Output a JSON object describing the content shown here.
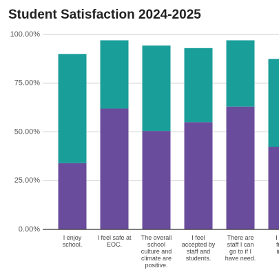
{
  "chart_data": {
    "type": "stacked_bar",
    "title": "Student Satisfaction 2024-2025",
    "categories": [
      "I enjoy\nschool.",
      "I feel safe at\nEOC.",
      "The overall\nschool\nculture and\nclimate are\npositive.",
      "I feel\naccepted by\nstaff and\nstudents.",
      "There are\nstaff I can\ngo to if I\nhave need.",
      "I use\nfrom\nin m\nli"
    ],
    "series": [
      {
        "color": "#6a4c9c",
        "values": [
          34,
          62,
          50.5,
          55,
          63,
          42.4
        ]
      },
      {
        "color": "#1a9e9a",
        "values": [
          56,
          35,
          43.8,
          38,
          34,
          45
        ]
      }
    ],
    "ylim": [
      0,
      100
    ],
    "yticks": [
      {
        "value": 0,
        "label": "0.00%"
      },
      {
        "value": 25,
        "label": "25.00%"
      },
      {
        "value": 50,
        "label": "50.00%"
      },
      {
        "value": 75,
        "label": "75.00%"
      },
      {
        "value": 100,
        "label": "100.00%"
      }
    ],
    "grid": true
  }
}
